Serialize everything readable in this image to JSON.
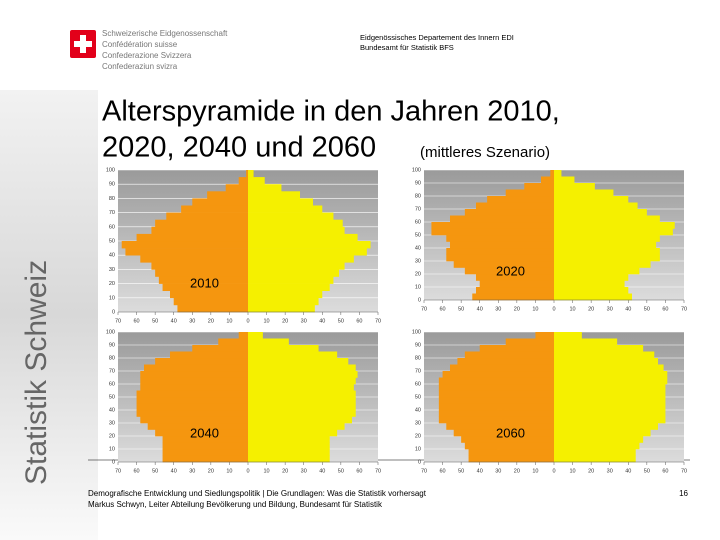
{
  "header": {
    "org": [
      "Schweizerische Eidgenossenschaft",
      "Confédération suisse",
      "Confederazione Svizzera",
      "Confederaziun svizra"
    ],
    "dept": [
      "Eidgenössisches Departement des Innern EDI",
      "Bundesamt für Statistik BFS"
    ]
  },
  "title": [
    "Alterspyramide in den Jahren 2010,",
    "2020, 2040 und 2060"
  ],
  "subtitle": "(mittleres Szenario)",
  "side_text": "Statistik Schweiz",
  "footer": [
    "Demografische Entwicklung und Siedlungspolitik | Die Grundlagen: Was die Statistik vorhersagt",
    "Markus Schwyn, Leiter Abteilung Bevölkerung und Bildung, Bundesamt für Statistik"
  ],
  "page": "16",
  "chart_data": [
    {
      "type": "pyramid",
      "label": "2010",
      "ages": [
        0,
        5,
        10,
        15,
        20,
        25,
        30,
        35,
        40,
        45,
        50,
        55,
        60,
        65,
        70,
        75,
        80,
        85,
        90,
        95
      ],
      "series": [
        {
          "color": "#f5960f",
          "values": [
            38,
            40,
            42,
            46,
            48,
            50,
            52,
            58,
            66,
            68,
            60,
            52,
            50,
            44,
            36,
            30,
            22,
            12,
            5,
            1
          ]
        },
        {
          "color": "#f5f000",
          "values": [
            36,
            38,
            40,
            44,
            46,
            49,
            52,
            57,
            64,
            66,
            59,
            52,
            51,
            46,
            40,
            35,
            28,
            18,
            9,
            3
          ]
        }
      ],
      "xlim": [
        -70,
        70
      ],
      "ylim": [
        0,
        100
      ],
      "xticks": [
        {
          "value": -70,
          "label": "70"
        },
        {
          "value": -60,
          "label": "60"
        },
        {
          "value": -50,
          "label": "50"
        },
        {
          "value": -40,
          "label": "40"
        },
        {
          "value": -30,
          "label": "30"
        },
        {
          "value": -20,
          "label": "20"
        },
        {
          "value": -10,
          "label": "10"
        },
        0,
        10,
        20,
        30,
        40,
        50,
        60,
        70
      ],
      "yticks": [
        0,
        10,
        20,
        30,
        40,
        50,
        60,
        70,
        80,
        90,
        100
      ]
    },
    {
      "type": "pyramid",
      "label": "2020",
      "ages": [
        0,
        5,
        10,
        15,
        20,
        25,
        30,
        35,
        40,
        45,
        50,
        55,
        60,
        65,
        70,
        75,
        80,
        85,
        90,
        95
      ],
      "series": [
        {
          "color": "#f5960f",
          "values": [
            44,
            42,
            40,
            42,
            48,
            54,
            58,
            58,
            56,
            58,
            66,
            66,
            56,
            48,
            42,
            36,
            26,
            16,
            7,
            2
          ]
        },
        {
          "color": "#f5f000",
          "values": [
            42,
            40,
            38,
            40,
            46,
            52,
            57,
            57,
            55,
            57,
            64,
            65,
            57,
            50,
            45,
            40,
            32,
            22,
            11,
            4
          ]
        }
      ],
      "xlim": [
        -70,
        70
      ],
      "ylim": [
        0,
        100
      ],
      "xticks": [
        {
          "value": -70,
          "label": "70"
        },
        {
          "value": -60,
          "label": "60"
        },
        {
          "value": -50,
          "label": "50"
        },
        {
          "value": -40,
          "label": "40"
        },
        {
          "value": -30,
          "label": "30"
        },
        {
          "value": -20,
          "label": "20"
        },
        {
          "value": -10,
          "label": "10"
        },
        0,
        10,
        20,
        30,
        40,
        50,
        60,
        70
      ],
      "yticks": [
        0,
        10,
        20,
        30,
        40,
        50,
        60,
        70,
        80,
        90,
        100
      ]
    },
    {
      "type": "pyramid",
      "label": "2040",
      "ages": [
        0,
        5,
        10,
        15,
        20,
        25,
        30,
        35,
        40,
        45,
        50,
        55,
        60,
        65,
        70,
        75,
        80,
        85,
        90,
        95
      ],
      "series": [
        {
          "color": "#f5960f",
          "values": [
            46,
            46,
            46,
            46,
            50,
            54,
            58,
            60,
            60,
            60,
            60,
            58,
            58,
            58,
            56,
            50,
            42,
            30,
            16,
            5
          ]
        },
        {
          "color": "#f5f000",
          "values": [
            44,
            44,
            44,
            44,
            48,
            52,
            56,
            58,
            58,
            58,
            58,
            57,
            58,
            59,
            58,
            54,
            48,
            38,
            22,
            8
          ]
        }
      ],
      "xlim": [
        -70,
        70
      ],
      "ylim": [
        0,
        100
      ],
      "xticks": [
        {
          "value": -70,
          "label": "70"
        },
        {
          "value": -60,
          "label": "60"
        },
        {
          "value": -50,
          "label": "50"
        },
        {
          "value": -40,
          "label": "40"
        },
        {
          "value": -30,
          "label": "30"
        },
        {
          "value": -20,
          "label": "20"
        },
        {
          "value": -10,
          "label": "10"
        },
        0,
        10,
        20,
        30,
        40,
        50,
        60,
        70
      ],
      "yticks": [
        0,
        10,
        20,
        30,
        40,
        50,
        60,
        70,
        80,
        90,
        100
      ]
    },
    {
      "type": "pyramid",
      "label": "2060",
      "ages": [
        0,
        5,
        10,
        15,
        20,
        25,
        30,
        35,
        40,
        45,
        50,
        55,
        60,
        65,
        70,
        75,
        80,
        85,
        90,
        95
      ],
      "series": [
        {
          "color": "#f5960f",
          "values": [
            46,
            46,
            48,
            50,
            54,
            58,
            62,
            62,
            62,
            62,
            62,
            62,
            62,
            60,
            56,
            52,
            48,
            40,
            26,
            10
          ]
        },
        {
          "color": "#f5f000",
          "values": [
            44,
            44,
            46,
            48,
            52,
            56,
            60,
            60,
            60,
            60,
            60,
            60,
            61,
            61,
            59,
            56,
            54,
            48,
            34,
            15
          ]
        }
      ],
      "xlim": [
        -70,
        70
      ],
      "ylim": [
        0,
        100
      ],
      "xticks": [
        {
          "value": -70,
          "label": "70"
        },
        {
          "value": -60,
          "label": "60"
        },
        {
          "value": -50,
          "label": "50"
        },
        {
          "value": -40,
          "label": "40"
        },
        {
          "value": -30,
          "label": "30"
        },
        {
          "value": -20,
          "label": "20"
        },
        {
          "value": -10,
          "label": "10"
        },
        0,
        10,
        20,
        30,
        40,
        50,
        60,
        70
      ],
      "yticks": [
        0,
        10,
        20,
        30,
        40,
        50,
        60,
        70,
        80,
        90,
        100
      ]
    }
  ]
}
